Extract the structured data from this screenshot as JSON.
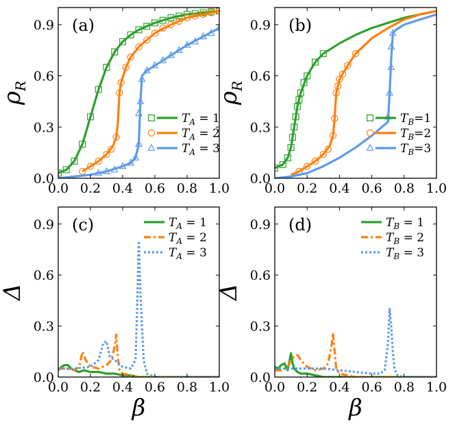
{
  "figure": {
    "colors": {
      "green": "#2ca02c",
      "orange": "#ff7f0e",
      "blue": "#5b9bea"
    }
  },
  "chart_data": [
    {
      "id": "a",
      "type": "line",
      "panel_label": "(a)",
      "ylabel": "ρ",
      "ylabel_sub": "R",
      "xlabel": "",
      "xlim": [
        0,
        1
      ],
      "ylim": [
        0,
        1
      ],
      "xticks": [
        0.0,
        0.2,
        0.4,
        0.6,
        0.8,
        1.0
      ],
      "xtick_labels": [
        "0.0",
        "0.2",
        "0.4",
        "0.6",
        "0.8",
        "1.0"
      ],
      "yticks": [
        0.0,
        0.3,
        0.6,
        0.9
      ],
      "ytick_labels": [
        "0.0",
        "0.3",
        "0.6",
        "0.9"
      ],
      "legend_position": "lower-right",
      "legend_style": "spaced",
      "series": [
        {
          "name": "T_A = 1",
          "var": "T",
          "sub": "A",
          "val": "1",
          "color": "green",
          "marker": "square",
          "x": [
            0.0,
            0.05,
            0.1,
            0.15,
            0.2,
            0.25,
            0.3,
            0.35,
            0.4,
            0.45,
            0.5,
            0.6,
            0.7,
            0.8,
            0.9,
            1.0
          ],
          "y": [
            0.03,
            0.05,
            0.1,
            0.2,
            0.36,
            0.52,
            0.65,
            0.74,
            0.8,
            0.84,
            0.87,
            0.91,
            0.94,
            0.96,
            0.97,
            0.98
          ],
          "mx": [
            0.0,
            0.05,
            0.1,
            0.15,
            0.2,
            0.25,
            0.3,
            0.35,
            0.4,
            0.45,
            0.5,
            0.55,
            0.6,
            0.65,
            0.7,
            0.75,
            0.8,
            0.85,
            0.9,
            0.95,
            1.0
          ],
          "my": [
            0.03,
            0.05,
            0.1,
            0.2,
            0.36,
            0.52,
            0.65,
            0.74,
            0.8,
            0.84,
            0.87,
            0.89,
            0.91,
            0.925,
            0.94,
            0.95,
            0.96,
            0.965,
            0.97,
            0.975,
            0.98
          ]
        },
        {
          "name": "T_A = 2",
          "var": "T",
          "sub": "A",
          "val": "2",
          "color": "orange",
          "marker": "circle",
          "x": [
            0.15,
            0.2,
            0.25,
            0.3,
            0.34,
            0.36,
            0.37,
            0.38,
            0.39,
            0.42,
            0.45,
            0.5,
            0.6,
            0.7,
            0.8,
            0.9,
            1.0
          ],
          "y": [
            0.04,
            0.07,
            0.1,
            0.14,
            0.19,
            0.24,
            0.32,
            0.5,
            0.56,
            0.65,
            0.71,
            0.77,
            0.85,
            0.9,
            0.94,
            0.96,
            0.98
          ],
          "mx": [
            0.15,
            0.2,
            0.25,
            0.3,
            0.33,
            0.36,
            0.38,
            0.39,
            0.42,
            0.45,
            0.5,
            0.55,
            0.6,
            0.65,
            0.7,
            0.75,
            0.8,
            0.85,
            0.9,
            0.95,
            1.0
          ],
          "my": [
            0.04,
            0.07,
            0.1,
            0.14,
            0.17,
            0.24,
            0.5,
            0.56,
            0.65,
            0.71,
            0.77,
            0.81,
            0.85,
            0.88,
            0.9,
            0.92,
            0.94,
            0.95,
            0.96,
            0.97,
            0.98
          ]
        },
        {
          "name": "T_A = 3",
          "var": "T",
          "sub": "A",
          "val": "3",
          "color": "blue",
          "marker": "triangle",
          "x": [
            0.0,
            0.1,
            0.2,
            0.3,
            0.4,
            0.45,
            0.48,
            0.5,
            0.51,
            0.52,
            0.55,
            0.6,
            0.7,
            0.8,
            0.9,
            1.0
          ],
          "y": [
            0.0,
            0.01,
            0.02,
            0.04,
            0.07,
            0.09,
            0.12,
            0.2,
            0.45,
            0.6,
            0.63,
            0.66,
            0.72,
            0.78,
            0.83,
            0.88
          ],
          "mx": [
            0.25,
            0.3,
            0.35,
            0.4,
            0.45,
            0.48,
            0.5,
            0.5,
            0.51,
            0.52,
            0.55,
            0.6,
            0.65,
            0.7,
            0.75,
            0.8,
            0.85,
            0.9,
            0.95,
            1.0
          ],
          "my": [
            0.03,
            0.04,
            0.05,
            0.07,
            0.09,
            0.12,
            0.2,
            0.38,
            0.45,
            0.58,
            0.63,
            0.66,
            0.69,
            0.72,
            0.75,
            0.78,
            0.8,
            0.83,
            0.85,
            0.88
          ]
        }
      ]
    },
    {
      "id": "b",
      "type": "line",
      "panel_label": "(b)",
      "ylabel": "ρ",
      "ylabel_sub": "R",
      "xlabel": "",
      "xlim": [
        0,
        1
      ],
      "ylim": [
        0,
        1
      ],
      "xticks": [
        0.0,
        0.2,
        0.4,
        0.6,
        0.8,
        1.0
      ],
      "xtick_labels": [
        "0.0",
        "0.2",
        "0.4",
        "0.6",
        "0.8",
        "1.0"
      ],
      "yticks": [
        0.0,
        0.3,
        0.6,
        0.9
      ],
      "ytick_labels": [
        "0.0",
        "0.3",
        "0.6",
        "0.9"
      ],
      "legend_position": "lower-right",
      "legend_style": "compact",
      "series": [
        {
          "name": "T_B=1",
          "var": "T",
          "sub": "B",
          "val": "1",
          "color": "green",
          "marker": "square",
          "x": [
            0.0,
            0.05,
            0.08,
            0.1,
            0.12,
            0.14,
            0.16,
            0.2,
            0.25,
            0.3,
            0.4,
            0.5,
            0.6,
            0.7,
            0.8,
            0.9,
            1.0
          ],
          "y": [
            0.06,
            0.08,
            0.12,
            0.18,
            0.3,
            0.42,
            0.5,
            0.6,
            0.68,
            0.73,
            0.79,
            0.84,
            0.88,
            0.91,
            0.94,
            0.96,
            0.98
          ],
          "mx": [
            0.0,
            0.05,
            0.08,
            0.1,
            0.11,
            0.12,
            0.13,
            0.14,
            0.15,
            0.16,
            0.18,
            0.2,
            0.25,
            0.3
          ],
          "my": [
            0.06,
            0.08,
            0.12,
            0.18,
            0.24,
            0.3,
            0.36,
            0.42,
            0.46,
            0.5,
            0.56,
            0.6,
            0.68,
            0.73
          ]
        },
        {
          "name": "T_B=2",
          "var": "T",
          "sub": "B",
          "val": "2",
          "color": "orange",
          "marker": "circle",
          "x": [
            0.1,
            0.15,
            0.2,
            0.25,
            0.3,
            0.34,
            0.36,
            0.37,
            0.38,
            0.4,
            0.45,
            0.5,
            0.6,
            0.7,
            0.8,
            0.9,
            1.0
          ],
          "y": [
            0.02,
            0.04,
            0.07,
            0.1,
            0.14,
            0.19,
            0.25,
            0.35,
            0.5,
            0.58,
            0.66,
            0.73,
            0.82,
            0.88,
            0.93,
            0.96,
            0.98
          ],
          "mx": [
            0.15,
            0.2,
            0.25,
            0.3,
            0.33,
            0.36,
            0.37,
            0.38,
            0.39,
            0.4,
            0.42,
            0.45,
            0.5
          ],
          "my": [
            0.04,
            0.07,
            0.1,
            0.14,
            0.17,
            0.25,
            0.35,
            0.5,
            0.54,
            0.58,
            0.61,
            0.66,
            0.73
          ]
        },
        {
          "name": "T_B=3",
          "var": "T",
          "sub": "B",
          "val": "3",
          "color": "blue",
          "marker": "triangle",
          "x": [
            0.0,
            0.1,
            0.2,
            0.3,
            0.4,
            0.5,
            0.6,
            0.65,
            0.7,
            0.71,
            0.72,
            0.73,
            0.75,
            0.8,
            0.9,
            1.0
          ],
          "y": [
            0.0,
            0.01,
            0.03,
            0.07,
            0.12,
            0.18,
            0.25,
            0.29,
            0.33,
            0.5,
            0.7,
            0.85,
            0.87,
            0.9,
            0.93,
            0.96
          ],
          "mx": [
            0.7,
            0.71,
            0.72,
            0.72,
            0.73
          ],
          "my": [
            0.36,
            0.5,
            0.65,
            0.77,
            0.85
          ]
        }
      ]
    },
    {
      "id": "c",
      "type": "line",
      "panel_label": "(c)",
      "ylabel": "Δ",
      "ylabel_sub": "",
      "xlabel": "β",
      "xlim": [
        0,
        1
      ],
      "ylim": [
        0,
        1
      ],
      "xticks": [
        0.0,
        0.2,
        0.4,
        0.6,
        0.8,
        1.0
      ],
      "xtick_labels": [
        "0.0",
        "0.2",
        "0.4",
        "0.6",
        "0.8",
        "1.0"
      ],
      "yticks": [
        0.0,
        0.3,
        0.6,
        0.9
      ],
      "ytick_labels": [
        "0.0",
        "0.3",
        "0.6",
        "0.9"
      ],
      "legend_position": "top-right",
      "legend_style": "spaced",
      "series": [
        {
          "name": "T_A = 1",
          "var": "T",
          "sub": "A",
          "val": "1",
          "color": "green",
          "line": "solid",
          "x": [
            0.0,
            0.02,
            0.04,
            0.06,
            0.08,
            0.1,
            0.13,
            0.16,
            0.2,
            0.25,
            0.3,
            0.35,
            0.4,
            0.45,
            0.5,
            0.6,
            1.0
          ],
          "y": [
            0.04,
            0.06,
            0.07,
            0.07,
            0.05,
            0.04,
            0.03,
            0.04,
            0.03,
            0.03,
            0.02,
            0.02,
            0.01,
            0.01,
            0.0,
            0.0,
            0.0
          ]
        },
        {
          "name": "T_A = 2",
          "var": "T",
          "sub": "A",
          "val": "2",
          "color": "orange",
          "line": "dashdot",
          "x": [
            0.0,
            0.05,
            0.1,
            0.13,
            0.15,
            0.17,
            0.2,
            0.25,
            0.3,
            0.33,
            0.35,
            0.36,
            0.37,
            0.38,
            0.4,
            0.45,
            0.5,
            1.0
          ],
          "y": [
            0.05,
            0.05,
            0.04,
            0.06,
            0.15,
            0.1,
            0.06,
            0.05,
            0.07,
            0.1,
            0.18,
            0.25,
            0.12,
            0.04,
            0.02,
            0.01,
            0.0,
            0.0
          ]
        },
        {
          "name": "T_A = 3",
          "var": "T",
          "sub": "A",
          "val": "3",
          "color": "blue",
          "line": "dotted",
          "x": [
            0.0,
            0.1,
            0.2,
            0.25,
            0.28,
            0.3,
            0.32,
            0.35,
            0.4,
            0.45,
            0.48,
            0.49,
            0.5,
            0.51,
            0.52,
            0.53,
            0.55,
            0.6,
            1.0
          ],
          "y": [
            0.05,
            0.05,
            0.06,
            0.1,
            0.2,
            0.21,
            0.12,
            0.1,
            0.06,
            0.05,
            0.1,
            0.4,
            0.8,
            0.5,
            0.3,
            0.1,
            0.02,
            0.0,
            0.0
          ]
        }
      ]
    },
    {
      "id": "d",
      "type": "line",
      "panel_label": "(d)",
      "ylabel": "Δ",
      "ylabel_sub": "",
      "xlabel": "β",
      "xlim": [
        0,
        1
      ],
      "ylim": [
        0,
        1
      ],
      "xticks": [
        0.0,
        0.2,
        0.4,
        0.6,
        0.8,
        1.0
      ],
      "xtick_labels": [
        "0.0",
        "0.2",
        "0.4",
        "0.6",
        "0.8",
        "1.0"
      ],
      "yticks": [
        0.0,
        0.3,
        0.6,
        0.9
      ],
      "ytick_labels": [
        "0.0",
        "0.3",
        "0.6",
        "0.9"
      ],
      "legend_position": "top-right",
      "legend_style": "spaced",
      "series": [
        {
          "name": "T_B = 1",
          "var": "T",
          "sub": "B",
          "val": "1",
          "color": "green",
          "line": "solid",
          "x": [
            0.0,
            0.02,
            0.04,
            0.06,
            0.08,
            0.1,
            0.11,
            0.12,
            0.14,
            0.16,
            0.2,
            0.25,
            0.3,
            0.4,
            0.5,
            1.0
          ],
          "y": [
            0.06,
            0.05,
            0.07,
            0.08,
            0.04,
            0.14,
            0.08,
            0.05,
            0.03,
            0.02,
            0.02,
            0.01,
            0.0,
            0.0,
            0.0,
            0.0
          ]
        },
        {
          "name": "T_B = 2",
          "var": "T",
          "sub": "B",
          "val": "2",
          "color": "orange",
          "line": "dashdot",
          "x": [
            0.0,
            0.05,
            0.08,
            0.1,
            0.12,
            0.14,
            0.16,
            0.2,
            0.25,
            0.3,
            0.33,
            0.35,
            0.36,
            0.37,
            0.38,
            0.4,
            0.45,
            0.5,
            1.0
          ],
          "y": [
            0.04,
            0.04,
            0.06,
            0.1,
            0.12,
            0.13,
            0.1,
            0.06,
            0.04,
            0.05,
            0.08,
            0.18,
            0.26,
            0.15,
            0.05,
            0.02,
            0.01,
            0.0,
            0.0
          ]
        },
        {
          "name": "T_B = 3",
          "var": "T",
          "sub": "B",
          "val": "3",
          "color": "blue",
          "line": "dotted",
          "x": [
            0.0,
            0.1,
            0.2,
            0.3,
            0.4,
            0.5,
            0.6,
            0.65,
            0.68,
            0.7,
            0.71,
            0.72,
            0.73,
            0.74,
            0.76,
            0.8,
            1.0
          ],
          "y": [
            0.05,
            0.05,
            0.05,
            0.05,
            0.04,
            0.03,
            0.02,
            0.02,
            0.04,
            0.2,
            0.4,
            0.3,
            0.15,
            0.05,
            0.01,
            0.0,
            0.0
          ]
        }
      ]
    }
  ]
}
